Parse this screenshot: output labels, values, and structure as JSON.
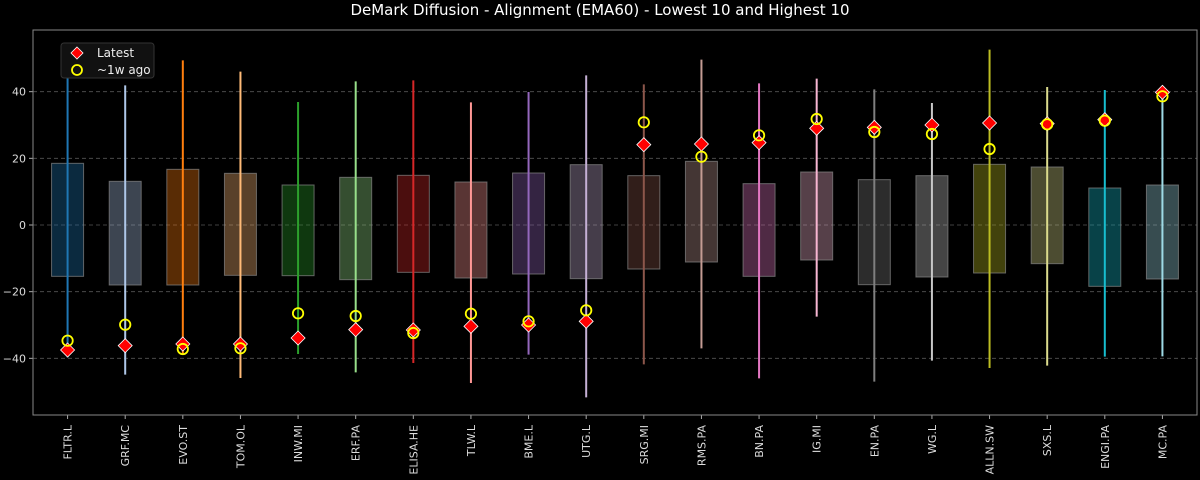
{
  "chart_data": {
    "type": "box-range",
    "title": "DeMark Diffusion - Alignment (EMA60) - Lowest 10 and Highest 10",
    "xlabel": "",
    "ylabel": "",
    "ylim": [
      -57,
      58.5
    ],
    "yticks": [
      -40,
      -20,
      0,
      20,
      40
    ],
    "grid": true,
    "legend_position": "top-left",
    "legend": [
      {
        "label": "Latest",
        "marker": "diamond",
        "color": "#ff0000"
      },
      {
        "label": "~1w ago",
        "marker": "circle",
        "color": "#ffff00"
      }
    ],
    "categories": [
      "FLTR.L",
      "GRF.MC",
      "EVO.ST",
      "TOM.OL",
      "INW.MI",
      "ERF.PA",
      "ELISA.HE",
      "TLW.L",
      "BME.L",
      "UTG.L",
      "SRG.MI",
      "RMS.PA",
      "BN.PA",
      "IG.MI",
      "EN.PA",
      "WG.L",
      "ALLN.SW",
      "SXS.L",
      "ENGI.PA",
      "MC.PA"
    ],
    "colors": [
      "#1f77b4",
      "#aec7e8",
      "#ff7f0e",
      "#ffbb78",
      "#2ca02c",
      "#98df8a",
      "#d62728",
      "#ff9896",
      "#9467bd",
      "#c5b0d5",
      "#8c564b",
      "#c49c94",
      "#e377c2",
      "#f7b6d2",
      "#7f7f7f",
      "#c7c7c7",
      "#bcbd22",
      "#dbdb8d",
      "#17becf",
      "#9edae5"
    ],
    "max": [
      44.9,
      41.9,
      49.4,
      46.0,
      36.9,
      43.1,
      43.4,
      36.8,
      39.9,
      44.9,
      42.2,
      49.6,
      42.5,
      43.9,
      40.7,
      36.6,
      52.6,
      41.4,
      40.5,
      39.4
    ],
    "min": [
      -39.7,
      -44.9,
      -39.0,
      -45.9,
      -38.7,
      -44.2,
      -41.4,
      -47.4,
      -38.9,
      -51.7,
      -41.8,
      -37.0,
      -46.0,
      -27.5,
      -47.0,
      -40.7,
      -42.9,
      -42.2,
      -39.5,
      -39.4
    ],
    "box_high": [
      18.5,
      13.1,
      16.7,
      15.5,
      12.0,
      14.3,
      14.9,
      12.9,
      15.6,
      18.1,
      14.8,
      19.1,
      12.4,
      15.9,
      13.6,
      14.8,
      18.2,
      17.4,
      11.1,
      12.0
    ],
    "box_low": [
      -15.4,
      -18.0,
      -18.0,
      -15.1,
      -15.2,
      -16.4,
      -14.2,
      -15.9,
      -14.7,
      -16.1,
      -13.2,
      -11.1,
      -15.4,
      -10.5,
      -17.9,
      -15.6,
      -14.4,
      -11.6,
      -18.4,
      -16.2
    ],
    "latest": [
      -37.5,
      -36.2,
      -35.7,
      -35.7,
      -33.9,
      -31.4,
      -31.5,
      -30.4,
      -30.0,
      -28.9,
      24.1,
      24.3,
      24.7,
      29.0,
      29.3,
      30.0,
      30.6,
      30.4,
      31.6,
      39.8
    ],
    "week_ago": [
      -34.7,
      -29.9,
      -37.2,
      -37.0,
      -26.5,
      -27.3,
      -32.4,
      -26.6,
      -28.9,
      -25.6,
      30.8,
      20.5,
      26.9,
      31.8,
      27.9,
      27.3,
      22.8,
      30.2,
      31.3,
      38.6
    ]
  }
}
